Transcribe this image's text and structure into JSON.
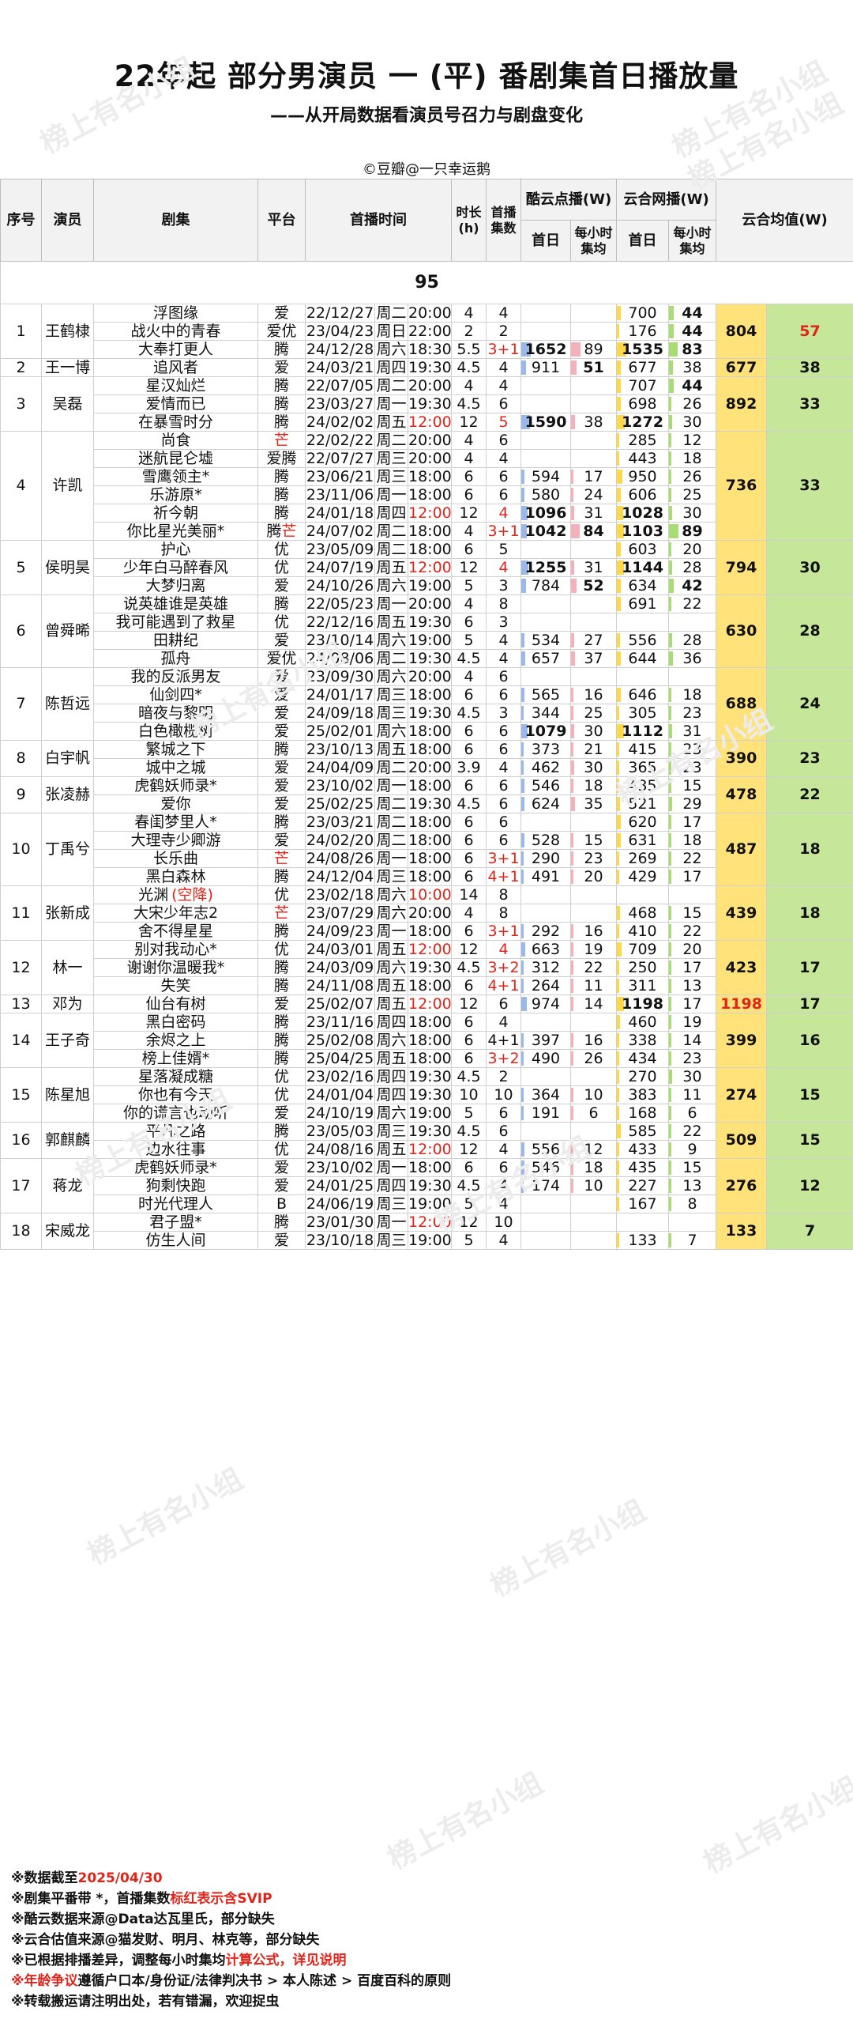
{
  "title": "22年起 部分男演员 一 (平) 番剧集首日播放量",
  "subtitle": "——从开局数据看演员号召力与剧盘变化",
  "credit": "©豆瓣@一只幸运鹅",
  "watermark": "榜上有名小组",
  "headers": {
    "no": "序号",
    "actor": "演员",
    "drama": "剧集",
    "platform": "平台",
    "airtime": "首播时间",
    "duration": "时长",
    "duration_unit": "(h)",
    "eps1": "首播",
    "eps2": "集数",
    "kuyun": "酷云点播(W)",
    "yunhe": "云合网播(W)",
    "first_day": "首日",
    "per_hour1": "每小时",
    "per_hour2": "集均",
    "avg": "云合均值(W)"
  },
  "section": "95",
  "groups": [
    {
      "no": "1",
      "actor": "王鹤棣",
      "avg_yh": "804",
      "avg_h": "57",
      "avg_h_red": true,
      "rows": [
        {
          "drama": "浮图缘",
          "plat": "爱",
          "date": "22/12/27",
          "week": "周二",
          "time": "20:00",
          "dur": "4",
          "eps": "4",
          "ky": "",
          "kyh": "",
          "yh": "700",
          "yhh": "44",
          "yhh_b": true
        },
        {
          "drama": "战火中的青春",
          "plat": "爱优",
          "date": "23/04/23",
          "week": "周日",
          "time": "22:00",
          "dur": "2",
          "eps": "2",
          "ky": "",
          "kyh": "",
          "yh": "176",
          "yhh": "44",
          "yhh_b": true
        },
        {
          "drama": "大奉打更人",
          "plat": "腾",
          "date": "24/12/28",
          "week": "周六",
          "time": "18:30",
          "dur": "5.5",
          "eps": "3+1",
          "eps_red": true,
          "ky": "1652",
          "ky_b": true,
          "kyh": "89",
          "yh": "1535",
          "yh_b": true,
          "yhh": "83",
          "yhh_b": true
        }
      ]
    },
    {
      "no": "2",
      "actor": "王一博",
      "avg_yh": "677",
      "avg_h": "38",
      "rows": [
        {
          "drama": "追风者",
          "plat": "爱",
          "date": "24/03/21",
          "week": "周四",
          "time": "19:30",
          "dur": "4.5",
          "eps": "4",
          "ky": "911",
          "kyh": "51",
          "kyh_b": true,
          "yh": "677",
          "yhh": "38"
        }
      ]
    },
    {
      "no": "3",
      "actor": "吴磊",
      "avg_yh": "892",
      "avg_h": "33",
      "rows": [
        {
          "drama": "星汉灿烂",
          "plat": "腾",
          "date": "22/07/05",
          "week": "周二",
          "time": "20:00",
          "dur": "4",
          "eps": "4",
          "ky": "",
          "kyh": "",
          "yh": "707",
          "yhh": "44",
          "yhh_b": true
        },
        {
          "drama": "爱情而已",
          "plat": "腾",
          "date": "23/03/27",
          "week": "周一",
          "time": "19:30",
          "dur": "4.5",
          "eps": "6",
          "ky": "",
          "kyh": "",
          "yh": "698",
          "yhh": "26"
        },
        {
          "drama": "在暴雪时分",
          "plat": "腾",
          "date": "24/02/02",
          "week": "周五",
          "time": "12:00",
          "time_red": true,
          "dur": "12",
          "eps": "5",
          "eps_red": true,
          "ky": "1590",
          "ky_b": true,
          "kyh": "38",
          "yh": "1272",
          "yh_b": true,
          "yhh": "30"
        }
      ]
    },
    {
      "no": "4",
      "actor": "许凯",
      "avg_yh": "736",
      "avg_h": "33",
      "rows": [
        {
          "drama": "尚食",
          "plat": "芒",
          "plat_red": true,
          "date": "22/02/22",
          "week": "周二",
          "time": "20:00",
          "dur": "4",
          "eps": "6",
          "ky": "",
          "kyh": "",
          "yh": "285",
          "yhh": "12"
        },
        {
          "drama": "迷航昆仑墟",
          "plat": "爱腾",
          "date": "22/07/27",
          "week": "周三",
          "time": "20:00",
          "dur": "4",
          "eps": "4",
          "ky": "",
          "kyh": "",
          "yh": "443",
          "yhh": "18"
        },
        {
          "drama": "雪鹰领主*",
          "plat": "腾",
          "date": "23/06/21",
          "week": "周三",
          "time": "18:00",
          "dur": "6",
          "eps": "6",
          "ky": "594",
          "kyh": "17",
          "yh": "950",
          "yhh": "26"
        },
        {
          "drama": "乐游原*",
          "plat": "腾",
          "date": "23/11/06",
          "week": "周一",
          "time": "18:00",
          "dur": "6",
          "eps": "6",
          "ky": "580",
          "kyh": "24",
          "yh": "606",
          "yhh": "25"
        },
        {
          "drama": "祈今朝",
          "plat": "腾",
          "date": "24/01/18",
          "week": "周四",
          "time": "12:00",
          "time_red": true,
          "dur": "12",
          "eps": "4",
          "eps_red": true,
          "ky": "1096",
          "ky_b": true,
          "kyh": "31",
          "yh": "1028",
          "yh_b": true,
          "yhh": "30"
        },
        {
          "drama": "你比星光美丽*",
          "plat": "腾芒",
          "plat2_red": true,
          "date": "24/07/02",
          "week": "周二",
          "time": "18:00",
          "dur": "4",
          "eps": "3+1",
          "eps_red": true,
          "ky": "1042",
          "ky_b": true,
          "kyh": "84",
          "kyh_b": true,
          "yh": "1103",
          "yh_b": true,
          "yhh": "89",
          "yhh_b": true
        }
      ]
    },
    {
      "no": "5",
      "actor": "侯明昊",
      "avg_yh": "794",
      "avg_h": "30",
      "rows": [
        {
          "drama": "护心",
          "plat": "优",
          "date": "23/05/09",
          "week": "周二",
          "time": "18:00",
          "dur": "6",
          "eps": "5",
          "ky": "",
          "kyh": "",
          "yh": "603",
          "yhh": "20"
        },
        {
          "drama": "少年白马醉春风",
          "plat": "优",
          "date": "24/07/19",
          "week": "周五",
          "time": "12:00",
          "time_red": true,
          "dur": "12",
          "eps": "4",
          "eps_red": true,
          "ky": "1255",
          "ky_b": true,
          "kyh": "31",
          "yh": "1144",
          "yh_b": true,
          "yhh": "28"
        },
        {
          "drama": "大梦归离",
          "plat": "爱",
          "date": "24/10/26",
          "week": "周六",
          "time": "19:00",
          "dur": "5",
          "eps": "3",
          "ky": "784",
          "kyh": "52",
          "kyh_b": true,
          "yh": "634",
          "yhh": "42",
          "yhh_b": true
        }
      ]
    },
    {
      "no": "6",
      "actor": "曾舜晞",
      "avg_yh": "630",
      "avg_h": "28",
      "rows": [
        {
          "drama": "说英雄谁是英雄",
          "plat": "腾",
          "date": "22/05/23",
          "week": "周一",
          "time": "20:00",
          "dur": "4",
          "eps": "8",
          "ky": "",
          "kyh": "",
          "yh": "691",
          "yhh": "22"
        },
        {
          "drama": "我可能遇到了救星",
          "plat": "优",
          "date": "22/12/16",
          "week": "周五",
          "time": "19:30",
          "dur": "6",
          "eps": "3",
          "ky": "",
          "kyh": "",
          "yh": "",
          "yhh": ""
        },
        {
          "drama": "田耕纪",
          "plat": "爱",
          "date": "23/10/14",
          "week": "周六",
          "time": "19:00",
          "dur": "5",
          "eps": "4",
          "ky": "534",
          "kyh": "27",
          "yh": "556",
          "yhh": "28"
        },
        {
          "drama": "孤舟",
          "plat": "爱优",
          "date": "24/08/06",
          "week": "周二",
          "time": "19:30",
          "dur": "4.5",
          "eps": "4",
          "ky": "657",
          "kyh": "37",
          "yh": "644",
          "yhh": "36"
        }
      ]
    },
    {
      "no": "7",
      "actor": "陈哲远",
      "avg_yh": "688",
      "avg_h": "24",
      "rows": [
        {
          "drama": "我的反派男友",
          "plat": "爱",
          "date": "23/09/30",
          "week": "周六",
          "time": "20:00",
          "dur": "4",
          "eps": "6",
          "ky": "",
          "kyh": "",
          "yh": "",
          "yhh": ""
        },
        {
          "drama": "仙剑四*",
          "plat": "爱",
          "date": "24/01/17",
          "week": "周三",
          "time": "18:00",
          "dur": "6",
          "eps": "6",
          "ky": "565",
          "kyh": "16",
          "yh": "646",
          "yhh": "18"
        },
        {
          "drama": "暗夜与黎明",
          "plat": "爱",
          "date": "24/09/18",
          "week": "周三",
          "time": "19:30",
          "dur": "4.5",
          "eps": "3",
          "ky": "344",
          "kyh": "25",
          "yh": "305",
          "yhh": "23"
        },
        {
          "drama": "白色橄榄树",
          "plat": "爱",
          "date": "25/02/01",
          "week": "周六",
          "time": "18:00",
          "dur": "6",
          "eps": "6",
          "ky": "1079",
          "ky_b": true,
          "kyh": "30",
          "yh": "1112",
          "yh_b": true,
          "yhh": "31"
        }
      ]
    },
    {
      "no": "8",
      "actor": "白宇帆",
      "avg_yh": "390",
      "avg_h": "23",
      "rows": [
        {
          "drama": "繁城之下",
          "plat": "腾",
          "date": "23/10/13",
          "week": "周五",
          "time": "18:00",
          "dur": "6",
          "eps": "6",
          "ky": "373",
          "kyh": "21",
          "yh": "415",
          "yhh": "23"
        },
        {
          "drama": "城中之城",
          "plat": "爱",
          "date": "24/04/09",
          "week": "周二",
          "time": "20:00",
          "dur": "3.9",
          "eps": "4",
          "ky": "462",
          "kyh": "30",
          "yh": "365",
          "yhh": "23"
        }
      ]
    },
    {
      "no": "9",
      "actor": "张凌赫",
      "avg_yh": "478",
      "avg_h": "22",
      "rows": [
        {
          "drama": "虎鹤妖师录*",
          "plat": "爱",
          "date": "23/10/02",
          "week": "周一",
          "time": "18:00",
          "dur": "6",
          "eps": "6",
          "ky": "546",
          "kyh": "18",
          "yh": "435",
          "yhh": "15"
        },
        {
          "drama": "爱你",
          "plat": "爱",
          "date": "25/02/25",
          "week": "周二",
          "time": "19:30",
          "dur": "4.5",
          "eps": "6",
          "ky": "624",
          "kyh": "35",
          "yh": "521",
          "yhh": "29"
        }
      ]
    },
    {
      "no": "10",
      "actor": "丁禹兮",
      "avg_yh": "487",
      "avg_h": "18",
      "rows": [
        {
          "drama": "春闺梦里人*",
          "plat": "腾",
          "date": "23/03/21",
          "week": "周二",
          "time": "18:00",
          "dur": "6",
          "eps": "6",
          "ky": "",
          "kyh": "",
          "yh": "620",
          "yhh": "17"
        },
        {
          "drama": "大理寺少卿游",
          "plat": "爱",
          "date": "24/02/20",
          "week": "周二",
          "time": "18:00",
          "dur": "6",
          "eps": "6",
          "ky": "528",
          "kyh": "15",
          "yh": "631",
          "yhh": "18"
        },
        {
          "drama": "长乐曲",
          "plat": "芒",
          "plat_red": true,
          "date": "24/08/26",
          "week": "周一",
          "time": "18:00",
          "dur": "6",
          "eps": "3+1",
          "eps_red": true,
          "ky": "290",
          "kyh": "23",
          "yh": "269",
          "yhh": "22"
        },
        {
          "drama": "黑白森林",
          "plat": "腾",
          "date": "24/12/04",
          "week": "周三",
          "time": "18:00",
          "dur": "6",
          "eps": "4+1",
          "eps_red": true,
          "ky": "491",
          "kyh": "20",
          "yh": "429",
          "yhh": "17"
        }
      ]
    },
    {
      "no": "11",
      "actor": "张新成",
      "avg_yh": "439",
      "avg_h": "18",
      "rows": [
        {
          "drama": "光渊",
          "drama_note": "(空降)",
          "plat": "优",
          "date": "23/02/18",
          "week": "周六",
          "time": "10:00",
          "time_red": true,
          "dur": "14",
          "eps": "8",
          "ky": "",
          "kyh": "",
          "yh": "",
          "yhh": ""
        },
        {
          "drama": "大宋少年志2",
          "plat": "芒",
          "plat_red": true,
          "date": "23/07/29",
          "week": "周六",
          "time": "20:00",
          "dur": "4",
          "eps": "8",
          "ky": "",
          "kyh": "",
          "yh": "468",
          "yhh": "15"
        },
        {
          "drama": "舍不得星星",
          "plat": "腾",
          "date": "24/09/23",
          "week": "周一",
          "time": "18:00",
          "dur": "6",
          "eps": "3+1",
          "eps_red": true,
          "ky": "292",
          "kyh": "16",
          "yh": "410",
          "yhh": "22"
        }
      ]
    },
    {
      "no": "12",
      "actor": "林一",
      "avg_yh": "423",
      "avg_h": "17",
      "rows": [
        {
          "drama": "别对我动心*",
          "plat": "优",
          "date": "24/03/01",
          "week": "周五",
          "time": "12:00",
          "time_red": true,
          "dur": "12",
          "eps": "4",
          "eps_red": true,
          "ky": "663",
          "kyh": "19",
          "yh": "709",
          "yhh": "20"
        },
        {
          "drama": "谢谢你温暖我*",
          "plat": "腾",
          "date": "24/03/09",
          "week": "周六",
          "time": "19:30",
          "dur": "4.5",
          "eps": "3+2",
          "eps_red": true,
          "ky": "312",
          "kyh": "22",
          "yh": "250",
          "yhh": "17"
        },
        {
          "drama": "失笑",
          "plat": "腾",
          "date": "24/11/08",
          "week": "周五",
          "time": "18:00",
          "dur": "6",
          "eps": "4+1",
          "eps_red": true,
          "ky": "264",
          "kyh": "11",
          "yh": "311",
          "yhh": "13"
        }
      ]
    },
    {
      "no": "13",
      "actor": "邓为",
      "avg_yh": "1198",
      "avg_yh_red": true,
      "avg_h": "17",
      "rows": [
        {
          "drama": "仙台有树",
          "plat": "爱",
          "date": "25/02/07",
          "week": "周五",
          "time": "12:00",
          "time_red": true,
          "dur": "12",
          "eps": "6",
          "ky": "974",
          "kyh": "14",
          "yh": "1198",
          "yh_b": true,
          "yhh": "17"
        }
      ]
    },
    {
      "no": "14",
      "actor": "王子奇",
      "avg_yh": "399",
      "avg_h": "16",
      "rows": [
        {
          "drama": "黑白密码",
          "plat": "腾",
          "date": "23/11/16",
          "week": "周四",
          "time": "18:00",
          "dur": "6",
          "eps": "4",
          "ky": "",
          "kyh": "",
          "yh": "460",
          "yhh": "19"
        },
        {
          "drama": "余烬之上",
          "plat": "腾",
          "date": "25/02/08",
          "week": "周六",
          "time": "18:00",
          "dur": "6",
          "eps": "4+1",
          "ky": "397",
          "kyh": "16",
          "yh": "338",
          "yhh": "14"
        },
        {
          "drama": "榜上佳婿*",
          "plat": "腾",
          "date": "25/04/25",
          "week": "周五",
          "time": "18:00",
          "dur": "6",
          "eps": "3+2",
          "eps_red": true,
          "ky": "490",
          "kyh": "26",
          "yh": "434",
          "yhh": "23"
        }
      ]
    },
    {
      "no": "15",
      "actor": "陈星旭",
      "avg_yh": "274",
      "avg_h": "15",
      "rows": [
        {
          "drama": "星落凝成糖",
          "plat": "优",
          "date": "23/02/16",
          "week": "周四",
          "time": "19:30",
          "dur": "4.5",
          "eps": "2",
          "ky": "",
          "kyh": "",
          "yh": "270",
          "yhh": "30"
        },
        {
          "drama": "你也有今天",
          "plat": "优",
          "date": "24/01/04",
          "week": "周四",
          "time": "19:30",
          "dur": "10",
          "eps": "10",
          "ky": "364",
          "kyh": "10",
          "yh": "383",
          "yhh": "11"
        },
        {
          "drama": "你的谎言也动听",
          "plat": "爱",
          "date": "24/10/19",
          "week": "周六",
          "time": "19:00",
          "dur": "5",
          "eps": "6",
          "ky": "191",
          "kyh": "6",
          "yh": "168",
          "yhh": "6"
        }
      ]
    },
    {
      "no": "16",
      "actor": "郭麒麟",
      "avg_yh": "509",
      "avg_h": "15",
      "rows": [
        {
          "drama": "平凡之路",
          "plat": "腾",
          "date": "23/05/03",
          "week": "周三",
          "time": "19:30",
          "dur": "4.5",
          "eps": "6",
          "ky": "",
          "kyh": "",
          "yh": "585",
          "yhh": "22"
        },
        {
          "drama": "边水往事",
          "plat": "优",
          "date": "24/08/16",
          "week": "周五",
          "time": "12:00",
          "time_red": true,
          "dur": "12",
          "eps": "4",
          "ky": "556",
          "kyh": "12",
          "yh": "433",
          "yhh": "9"
        }
      ]
    },
    {
      "no": "17",
      "actor": "蒋龙",
      "avg_yh": "276",
      "avg_h": "12",
      "rows": [
        {
          "drama": "虎鹤妖师录*",
          "plat": "爱",
          "date": "23/10/02",
          "week": "周一",
          "time": "18:00",
          "dur": "6",
          "eps": "6",
          "ky": "546",
          "kyh": "18",
          "yh": "435",
          "yhh": "15"
        },
        {
          "drama": "狗剩快跑",
          "plat": "爱",
          "date": "24/01/25",
          "week": "周四",
          "time": "19:30",
          "dur": "4.5",
          "eps": "4",
          "ky": "174",
          "kyh": "10",
          "yh": "227",
          "yhh": "13"
        },
        {
          "drama": "时光代理人",
          "plat": "B",
          "date": "24/06/19",
          "week": "周三",
          "time": "19:00",
          "dur": "5",
          "eps": "4",
          "ky": "",
          "kyh": "",
          "yh": "167",
          "yhh": "8"
        }
      ]
    },
    {
      "no": "18",
      "actor": "宋威龙",
      "avg_yh": "133",
      "avg_h": "7",
      "rows": [
        {
          "drama": "君子盟*",
          "plat": "腾",
          "date": "23/01/30",
          "week": "周一",
          "time": "12:00",
          "time_red": true,
          "dur": "12",
          "eps": "10",
          "ky": "",
          "kyh": "",
          "yh": "",
          "yhh": ""
        },
        {
          "drama": "仿生人间",
          "plat": "爱",
          "date": "23/10/18",
          "week": "周三",
          "time": "19:00",
          "dur": "5",
          "eps": "4",
          "ky": "",
          "kyh": "",
          "yh": "133",
          "yhh": "7"
        }
      ]
    }
  ],
  "notes": [
    {
      "parts": [
        {
          "t": "※数据截至"
        },
        {
          "t": "2025/04/30",
          "red": true
        }
      ]
    },
    {
      "parts": [
        {
          "t": "※剧集平番带 *，首播集数"
        },
        {
          "t": "标红表示含SVIP",
          "red": true
        }
      ]
    },
    {
      "parts": [
        {
          "t": "※酷云数据来源@Data达瓦里氏，部分缺失"
        }
      ]
    },
    {
      "parts": [
        {
          "t": "※云合估值来源@猫发财、明月、林克等，部分缺失"
        }
      ]
    },
    {
      "parts": [
        {
          "t": "※已根据排播差异，调整每小时集均"
        },
        {
          "t": "计算公式，详见说明",
          "red": true
        }
      ]
    },
    {
      "parts": [
        {
          "t": "※年龄争议",
          "red": true
        },
        {
          "t": "遵循户口本/身份证/法律判决书 > 本人陈述 > 百度百科的原则"
        }
      ]
    },
    {
      "parts": [
        {
          "t": "※转载搬运请注明出处，若有错漏，欢迎捉虫"
        }
      ]
    }
  ]
}
